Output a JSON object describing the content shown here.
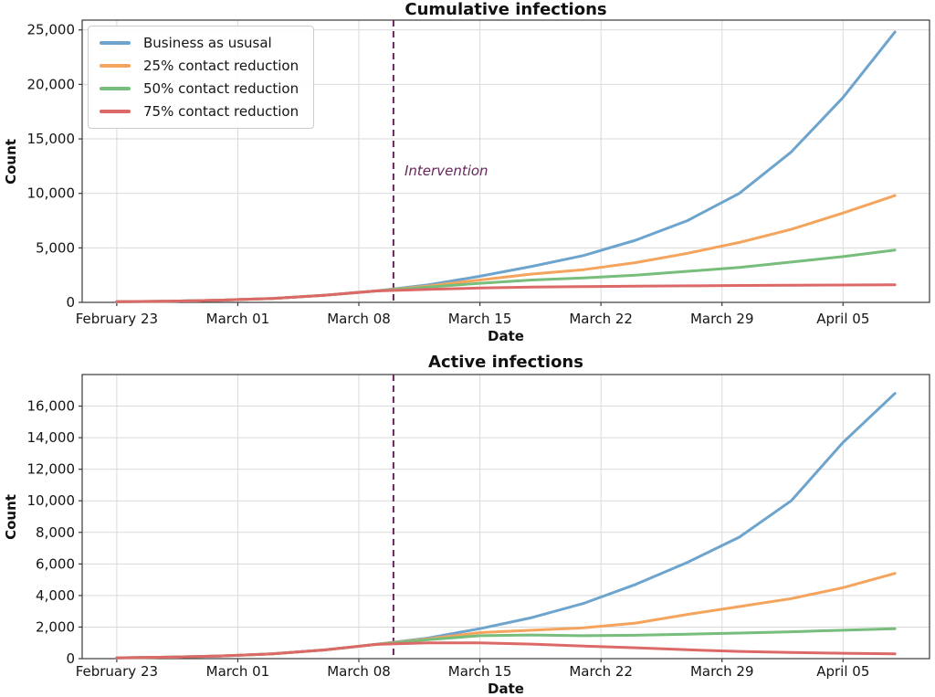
{
  "figure": {
    "background": "#ffffff"
  },
  "legend": {
    "position": "upper-left",
    "items": [
      {
        "id": "bau",
        "label": "Business as ususal",
        "color": "#6da4cd"
      },
      {
        "id": "r25",
        "label": "25% contact reduction",
        "color": "#f4a45c"
      },
      {
        "id": "r50",
        "label": "50% contact reduction",
        "color": "#77bd7b"
      },
      {
        "id": "r75",
        "label": "75% contact reduction",
        "color": "#dc6967"
      }
    ]
  },
  "annotation": {
    "label": "Intervention",
    "color": "#67275a",
    "style": "dashed-vertical-line",
    "x_day": 16,
    "x_date": "March 10"
  },
  "chart_data": [
    {
      "type": "line",
      "title": "Cumulative infections",
      "xlabel": "Date",
      "ylabel": "Count",
      "grid": true,
      "x_unit": "days since February 23",
      "x_days": [
        0,
        3,
        6,
        9,
        12,
        15,
        18,
        21,
        24,
        27,
        30,
        33,
        36,
        39,
        42,
        45
      ],
      "xlim": [
        -2,
        47
      ],
      "ylim": [
        0,
        25900
      ],
      "y_ticks": [
        0,
        5000,
        10000,
        15000,
        20000,
        25000
      ],
      "x_ticks": [
        {
          "day": 0,
          "label": "February 23"
        },
        {
          "day": 7,
          "label": "March 01"
        },
        {
          "day": 14,
          "label": "March 08"
        },
        {
          "day": 21,
          "label": "March 15"
        },
        {
          "day": 28,
          "label": "March 22"
        },
        {
          "day": 35,
          "label": "March 29"
        },
        {
          "day": 42,
          "label": "April 05"
        }
      ],
      "intervention_day": 16,
      "show_annotation": true,
      "series": [
        {
          "id": "bau",
          "name": "Business as ususal",
          "color": "#6da4cd",
          "values": [
            60,
            110,
            200,
            360,
            650,
            1050,
            1600,
            2400,
            3300,
            4300,
            5700,
            7500,
            10000,
            13800,
            18800,
            24800
          ]
        },
        {
          "id": "r25",
          "name": "25% contact reduction",
          "color": "#f4a45c",
          "values": [
            60,
            110,
            200,
            360,
            650,
            1050,
            1500,
            2050,
            2600,
            3000,
            3650,
            4500,
            5500,
            6700,
            8200,
            9800
          ]
        },
        {
          "id": "r50",
          "name": "50% contact reduction",
          "color": "#77bd7b",
          "values": [
            60,
            110,
            200,
            360,
            650,
            1050,
            1400,
            1750,
            2050,
            2250,
            2500,
            2850,
            3200,
            3700,
            4200,
            4800
          ]
        },
        {
          "id": "r75",
          "name": "75% contact reduction",
          "color": "#dc6967",
          "values": [
            60,
            110,
            200,
            360,
            650,
            1050,
            1200,
            1320,
            1400,
            1450,
            1490,
            1520,
            1550,
            1570,
            1590,
            1610
          ]
        }
      ]
    },
    {
      "type": "line",
      "title": "Active infections",
      "xlabel": "Date",
      "ylabel": "Count",
      "grid": true,
      "x_unit": "days since February 23",
      "x_days": [
        0,
        3,
        6,
        9,
        12,
        15,
        18,
        21,
        24,
        27,
        30,
        33,
        36,
        39,
        42,
        45
      ],
      "xlim": [
        -2,
        47
      ],
      "ylim": [
        0,
        18000
      ],
      "y_ticks": [
        0,
        2000,
        4000,
        6000,
        8000,
        10000,
        12000,
        14000,
        16000
      ],
      "x_ticks": [
        {
          "day": 0,
          "label": "February 23"
        },
        {
          "day": 7,
          "label": "March 01"
        },
        {
          "day": 14,
          "label": "March 08"
        },
        {
          "day": 21,
          "label": "March 15"
        },
        {
          "day": 28,
          "label": "March 22"
        },
        {
          "day": 35,
          "label": "March 29"
        },
        {
          "day": 42,
          "label": "April 05"
        }
      ],
      "intervention_day": 16,
      "show_annotation": false,
      "series": [
        {
          "id": "bau",
          "name": "Business as ususal",
          "color": "#6da4cd",
          "values": [
            50,
            90,
            170,
            300,
            550,
            900,
            1300,
            1900,
            2600,
            3500,
            4700,
            6100,
            7700,
            10000,
            13700,
            16800
          ]
        },
        {
          "id": "r25",
          "name": "25% contact reduction",
          "color": "#f4a45c",
          "values": [
            50,
            90,
            170,
            300,
            550,
            900,
            1250,
            1650,
            1800,
            1950,
            2250,
            2800,
            3300,
            3800,
            4500,
            5400
          ]
        },
        {
          "id": "r50",
          "name": "50% contact reduction",
          "color": "#77bd7b",
          "values": [
            50,
            90,
            170,
            300,
            550,
            900,
            1200,
            1450,
            1500,
            1450,
            1480,
            1550,
            1620,
            1700,
            1800,
            1900
          ]
        },
        {
          "id": "r75",
          "name": "75% contact reduction",
          "color": "#dc6967",
          "values": [
            50,
            90,
            170,
            300,
            550,
            900,
            1000,
            1000,
            920,
            800,
            690,
            560,
            460,
            390,
            340,
            300
          ]
        }
      ]
    }
  ]
}
